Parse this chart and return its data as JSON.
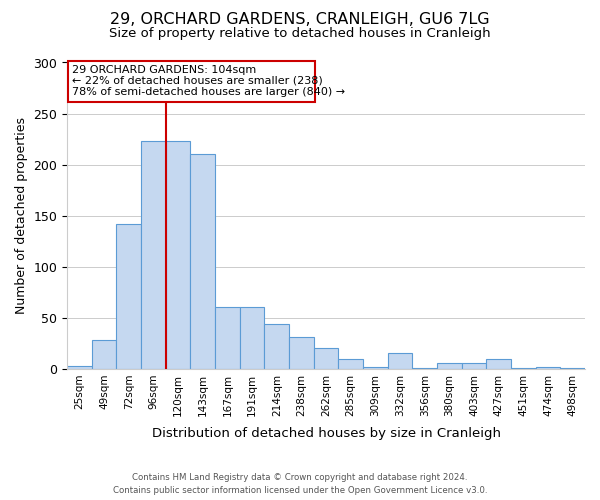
{
  "title": "29, ORCHARD GARDENS, CRANLEIGH, GU6 7LG",
  "subtitle": "Size of property relative to detached houses in Cranleigh",
  "xlabel": "Distribution of detached houses by size in Cranleigh",
  "ylabel": "Number of detached properties",
  "categories": [
    "25sqm",
    "49sqm",
    "72sqm",
    "96sqm",
    "120sqm",
    "143sqm",
    "167sqm",
    "191sqm",
    "214sqm",
    "238sqm",
    "262sqm",
    "285sqm",
    "309sqm",
    "332sqm",
    "356sqm",
    "380sqm",
    "403sqm",
    "427sqm",
    "451sqm",
    "474sqm",
    "498sqm"
  ],
  "values": [
    3,
    28,
    142,
    223,
    223,
    210,
    61,
    61,
    44,
    31,
    20,
    10,
    2,
    16,
    1,
    6,
    6,
    10,
    1,
    2,
    1
  ],
  "bar_color": "#c5d8f0",
  "bar_edge_color": "#5b9bd5",
  "grid_color": "#cccccc",
  "background_color": "#ffffff",
  "vline_x": 3.5,
  "vline_color": "#cc0000",
  "annotation_line1": "29 ORCHARD GARDENS: 104sqm",
  "annotation_line2": "← 22% of detached houses are smaller (238)",
  "annotation_line3": "78% of semi-detached houses are larger (840) →",
  "annotation_box_color": "#cc0000",
  "footer_line1": "Contains HM Land Registry data © Crown copyright and database right 2024.",
  "footer_line2": "Contains public sector information licensed under the Open Government Licence v3.0.",
  "ylim": [
    0,
    300
  ],
  "yticks": [
    0,
    50,
    100,
    150,
    200,
    250,
    300
  ]
}
